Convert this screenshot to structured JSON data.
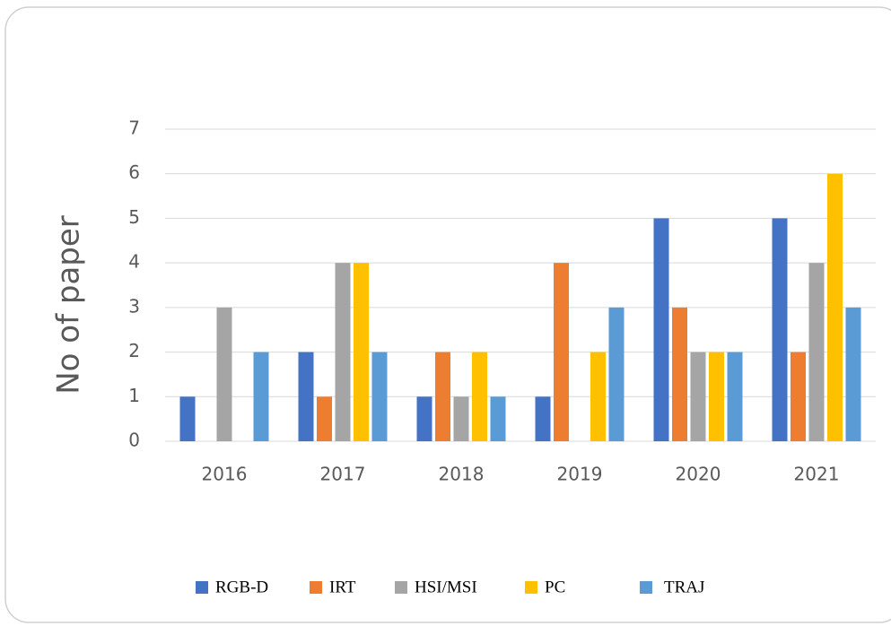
{
  "chart_data": {
    "type": "bar",
    "y_label": "No of paper",
    "categories": [
      "2016",
      "2017",
      "2018",
      "2019",
      "2020",
      "2021"
    ],
    "series": [
      {
        "name": "RGB-D",
        "color": "#4472c4",
        "values": [
          1,
          2,
          1,
          1,
          5,
          5
        ]
      },
      {
        "name": "IRT",
        "color": "#ed7d31",
        "values": [
          0,
          1,
          2,
          4,
          3,
          2
        ]
      },
      {
        "name": "HSI/MSI",
        "color": "#a5a5a5",
        "values": [
          3,
          4,
          1,
          0,
          2,
          4
        ]
      },
      {
        "name": "PC",
        "color": "#ffc000",
        "values": [
          0,
          4,
          2,
          2,
          2,
          6
        ]
      },
      {
        "name": "TRAJ",
        "color": "#5b9bd5",
        "values": [
          2,
          2,
          1,
          3,
          2,
          3
        ]
      }
    ],
    "ylim": [
      0,
      7
    ],
    "yticks": [
      0,
      1,
      2,
      3,
      4,
      5,
      6,
      7
    ],
    "grid": true,
    "legend": "bottom"
  }
}
